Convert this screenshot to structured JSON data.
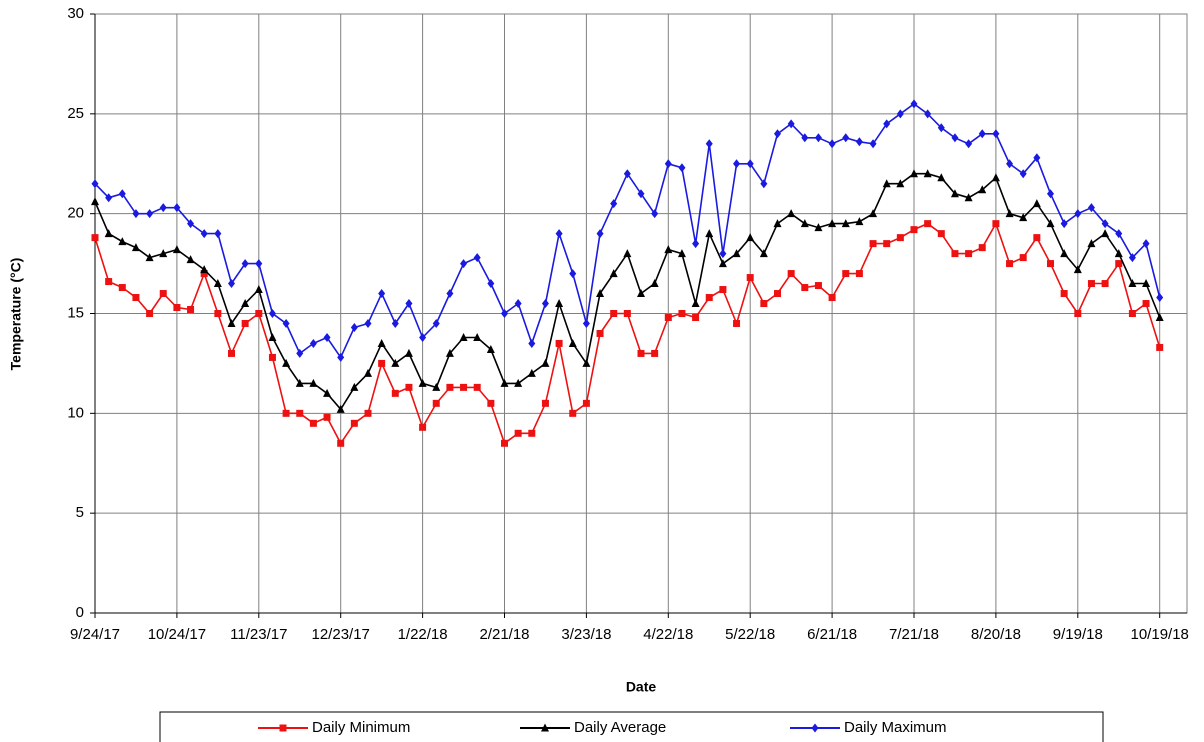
{
  "chart_data": {
    "type": "line",
    "xlabel": "Date",
    "ylabel": "Temperature (°C)",
    "x": [
      "9/24/17",
      "9/29/17",
      "10/4/17",
      "10/9/17",
      "10/14/17",
      "10/19/17",
      "10/24/17",
      "10/29/17",
      "11/3/17",
      "11/8/17",
      "11/13/17",
      "11/18/17",
      "11/23/17",
      "11/28/17",
      "12/3/17",
      "12/8/17",
      "12/13/17",
      "12/18/17",
      "12/23/17",
      "12/28/17",
      "1/2/18",
      "1/7/18",
      "1/12/18",
      "1/17/18",
      "1/22/18",
      "1/27/18",
      "2/1/18",
      "2/6/18",
      "2/11/18",
      "2/16/18",
      "2/21/18",
      "2/26/18",
      "3/3/18",
      "3/8/18",
      "3/13/18",
      "3/18/18",
      "3/23/18",
      "3/28/18",
      "4/2/18",
      "4/7/18",
      "4/12/18",
      "4/17/18",
      "4/22/18",
      "4/27/18",
      "5/2/18",
      "5/7/18",
      "5/12/18",
      "5/17/18",
      "5/22/18",
      "5/27/18",
      "6/1/18",
      "6/6/18",
      "6/11/18",
      "6/16/18",
      "6/21/18",
      "6/26/18",
      "7/1/18",
      "7/6/18",
      "7/11/18",
      "7/16/18",
      "7/21/18",
      "7/26/18",
      "7/31/18",
      "8/5/18",
      "8/10/18",
      "8/15/18",
      "8/20/18",
      "8/25/18",
      "8/30/18",
      "9/4/18",
      "9/9/18",
      "9/14/18",
      "9/19/18",
      "9/24/18",
      "9/29/18",
      "10/4/18",
      "10/9/18",
      "10/14/18",
      "10/19/18"
    ],
    "series": [
      {
        "name": "Daily Minimum",
        "color": "#ee1111",
        "marker": "square",
        "values": [
          18.8,
          16.6,
          16.3,
          15.8,
          15.0,
          16.0,
          15.3,
          15.2,
          17.0,
          15.0,
          13.0,
          14.5,
          15.0,
          12.8,
          10.0,
          10.0,
          9.5,
          9.8,
          8.5,
          9.5,
          10.0,
          12.5,
          11.0,
          11.3,
          9.3,
          10.5,
          11.3,
          11.3,
          11.3,
          10.5,
          8.5,
          9.0,
          9.0,
          10.5,
          13.5,
          10.0,
          10.5,
          14.0,
          15.0,
          15.0,
          13.0,
          13.0,
          14.8,
          15.0,
          14.8,
          15.8,
          16.2,
          14.5,
          16.8,
          15.5,
          16.0,
          17.0,
          16.3,
          16.4,
          15.8,
          17.0,
          17.0,
          18.5,
          18.5,
          18.8,
          19.2,
          19.5,
          19.0,
          18.0,
          18.0,
          18.3,
          19.5,
          17.5,
          17.8,
          18.8,
          17.5,
          16.0,
          15.0,
          16.5,
          16.5,
          17.5,
          15.0,
          15.5,
          13.3
        ]
      },
      {
        "name": "Daily Average",
        "color": "#000000",
        "marker": "triangle",
        "values": [
          20.6,
          19.0,
          18.6,
          18.3,
          17.8,
          18.0,
          18.2,
          17.7,
          17.2,
          16.5,
          14.5,
          15.5,
          16.2,
          13.8,
          12.5,
          11.5,
          11.5,
          11.0,
          10.2,
          11.3,
          12.0,
          13.5,
          12.5,
          13.0,
          11.5,
          11.3,
          13.0,
          13.8,
          13.8,
          13.2,
          11.5,
          11.5,
          12.0,
          12.5,
          15.5,
          13.5,
          12.5,
          16.0,
          17.0,
          18.0,
          16.0,
          16.5,
          18.2,
          18.0,
          15.5,
          19.0,
          17.5,
          18.0,
          18.8,
          18.0,
          19.5,
          20.0,
          19.5,
          19.3,
          19.5,
          19.5,
          19.6,
          20.0,
          21.5,
          21.5,
          22.0,
          22.0,
          21.8,
          21.0,
          20.8,
          21.2,
          21.8,
          20.0,
          19.8,
          20.5,
          19.5,
          18.0,
          17.2,
          18.5,
          19.0,
          18.0,
          16.5,
          16.5,
          14.8
        ]
      },
      {
        "name": "Daily Maximum",
        "color": "#1a1ae0",
        "marker": "diamond",
        "values": [
          21.5,
          20.8,
          21.0,
          20.0,
          20.0,
          20.3,
          20.3,
          19.5,
          19.0,
          19.0,
          16.5,
          17.5,
          17.5,
          15.0,
          14.5,
          13.0,
          13.5,
          13.8,
          12.8,
          14.3,
          14.5,
          16.0,
          14.5,
          15.5,
          13.8,
          14.5,
          16.0,
          17.5,
          17.8,
          16.5,
          15.0,
          15.5,
          13.5,
          15.5,
          19.0,
          17.0,
          14.5,
          19.0,
          20.5,
          22.0,
          21.0,
          20.0,
          22.5,
          22.3,
          18.5,
          23.5,
          18.0,
          22.5,
          22.5,
          21.5,
          24.0,
          24.5,
          23.8,
          23.8,
          23.5,
          23.8,
          23.6,
          23.5,
          24.5,
          25.0,
          25.5,
          25.0,
          24.3,
          23.8,
          23.5,
          24.0,
          24.0,
          22.5,
          22.0,
          22.8,
          21.0,
          19.5,
          20.0,
          20.3,
          19.5,
          19.0,
          17.8,
          18.5,
          15.8
        ]
      }
    ],
    "xlim": [
      "9/24/17",
      "10/29/18"
    ],
    "xticks": [
      "9/24/17",
      "10/24/17",
      "11/23/17",
      "12/23/17",
      "1/22/18",
      "2/21/18",
      "3/23/18",
      "4/22/18",
      "5/22/18",
      "6/21/18",
      "7/21/18",
      "8/20/18",
      "9/19/18",
      "10/19/18"
    ],
    "ylim": [
      0,
      30
    ],
    "yticks": [
      0,
      5,
      10,
      15,
      20,
      25,
      30
    ],
    "grid": true,
    "legend": "bottom"
  }
}
